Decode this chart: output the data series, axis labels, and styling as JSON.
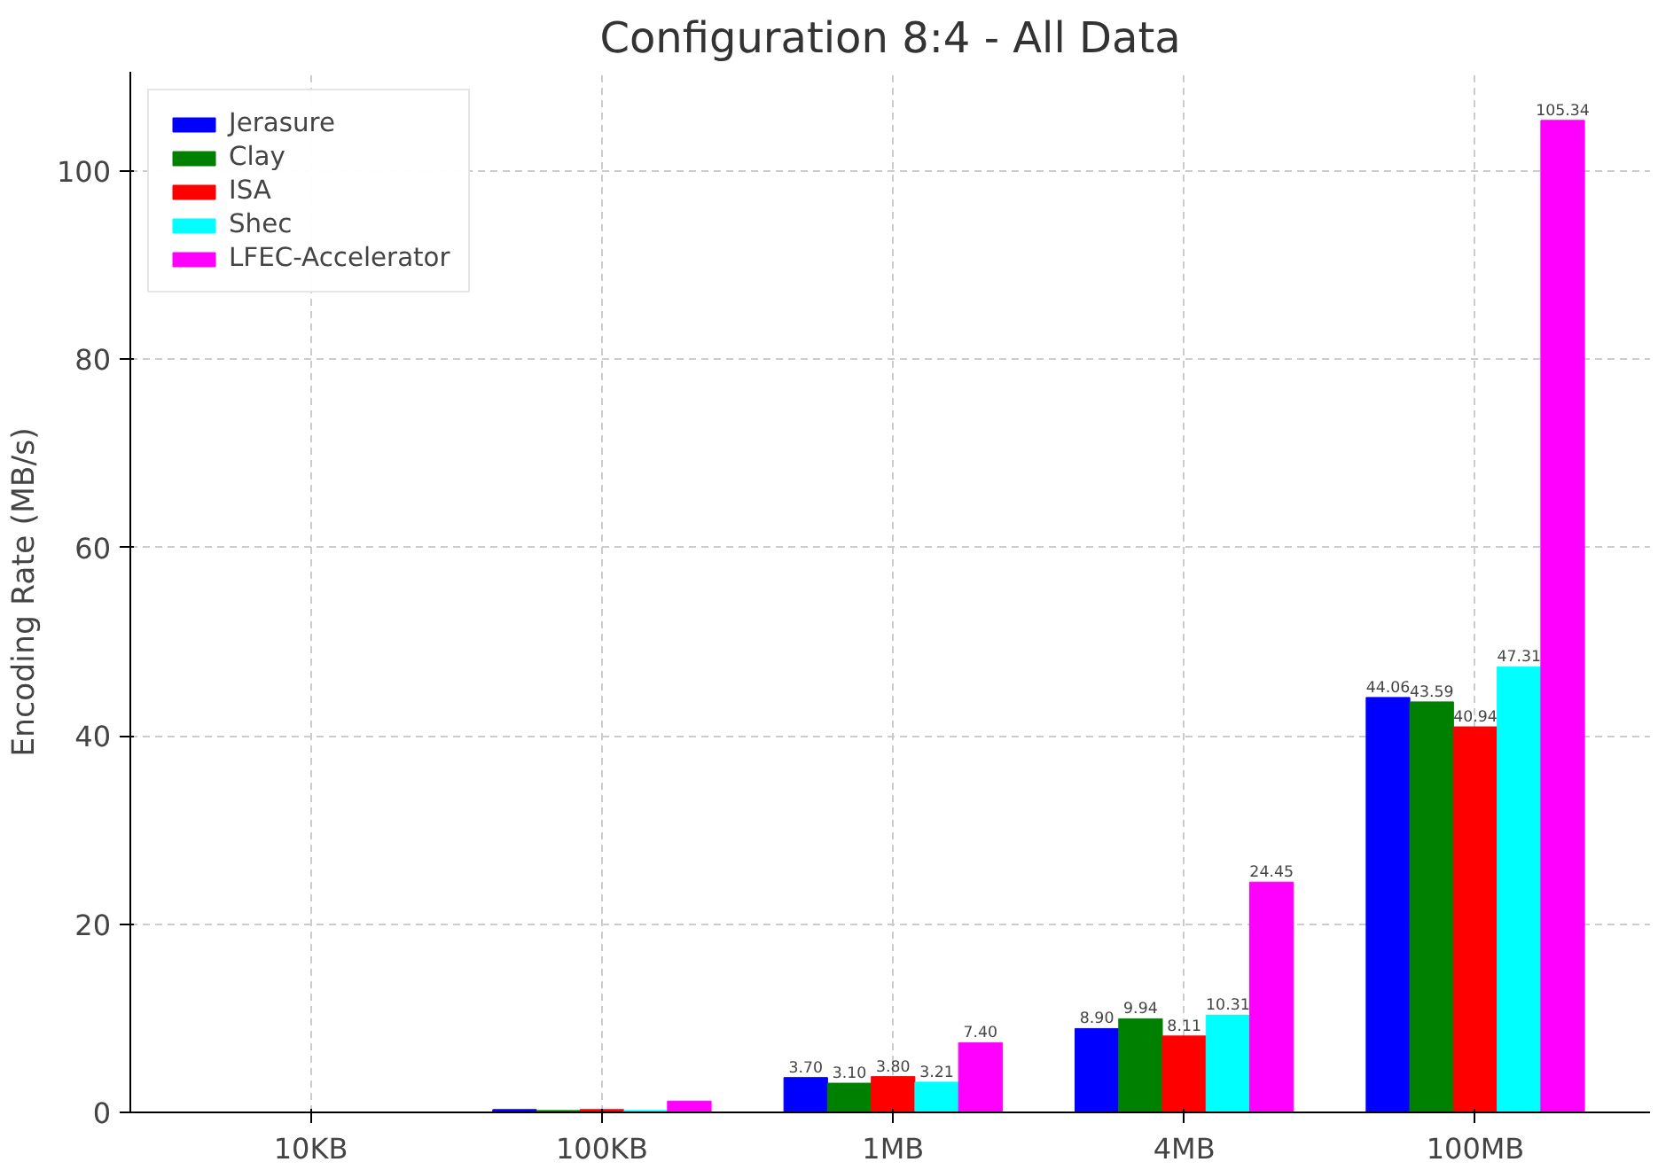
{
  "chart_data": {
    "type": "bar",
    "title": "Configuration 8:4 - All Data",
    "ylabel": "Encoding Rate (MB/s)",
    "categories": [
      "10KB",
      "100KB",
      "1MB",
      "4MB",
      "100MB"
    ],
    "series": [
      {
        "name": "Jerasure",
        "color": "#0000ff",
        "values": [
          null,
          0.3,
          3.7,
          8.9,
          44.06
        ],
        "value_labels": [
          null,
          null,
          "3.70",
          "8.90",
          "44.06"
        ]
      },
      {
        "name": "Clay",
        "color": "#008000",
        "values": [
          null,
          0.2,
          3.1,
          9.94,
          43.59
        ],
        "value_labels": [
          null,
          null,
          "3.10",
          "9.94",
          "43.59"
        ]
      },
      {
        "name": "ISA",
        "color": "#ff0000",
        "values": [
          null,
          0.3,
          3.8,
          8.11,
          40.94
        ],
        "value_labels": [
          null,
          null,
          "3.80",
          "8.11",
          "40.94"
        ]
      },
      {
        "name": "Shec",
        "color": "#00ffff",
        "values": [
          null,
          0.2,
          3.21,
          10.31,
          47.31
        ],
        "value_labels": [
          null,
          null,
          "3.21",
          "10.31",
          "47.31"
        ]
      },
      {
        "name": "LFEC-Accelerator",
        "color": "#ff00ff",
        "values": [
          null,
          1.2,
          7.4,
          24.45,
          105.34
        ],
        "value_labels": [
          null,
          null,
          "7.40",
          "24.45",
          "105.34"
        ]
      }
    ],
    "ylim": [
      0,
      110.5
    ],
    "yticks": [
      0,
      20,
      40,
      60,
      80,
      100
    ],
    "grid": true,
    "legend": "top left"
  }
}
